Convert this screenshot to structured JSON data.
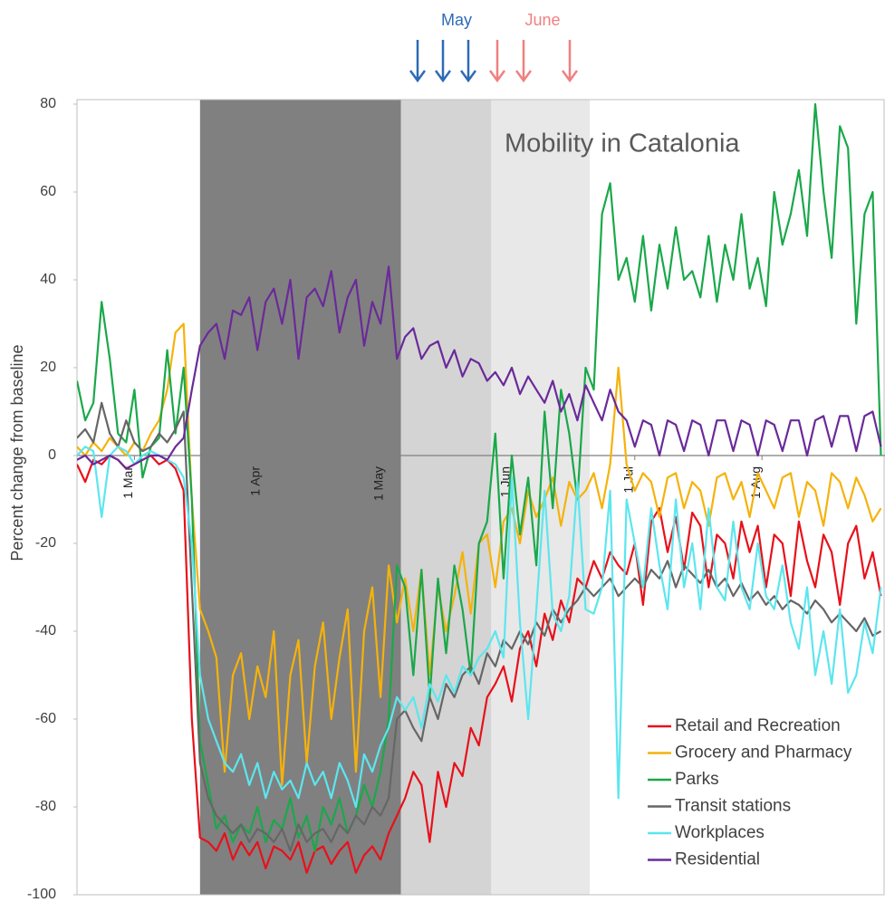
{
  "chart_data": {
    "type": "line",
    "title": "Mobility in Catalonia",
    "y_label": "Percent change from baseline",
    "annotations": [
      "May",
      "June"
    ],
    "xlim": [
      -14,
      183
    ],
    "xticks": [
      {
        "value": 0,
        "label": "1 Mar"
      },
      {
        "value": 31,
        "label": "1 Apr"
      },
      {
        "value": 61,
        "label": "1 May"
      },
      {
        "value": 92,
        "label": "1 Jun"
      },
      {
        "value": 122,
        "label": "1 Jul"
      },
      {
        "value": 153,
        "label": "1 Aug"
      }
    ],
    "ylim": [
      -100,
      80
    ],
    "yticks": [
      -100,
      -80,
      -60,
      -40,
      -20,
      0,
      20,
      40,
      60,
      80
    ],
    "legend": "lower-right",
    "shaded_ranges": [
      {
        "start": 16,
        "end": 65,
        "color": "#808080"
      },
      {
        "start": 65,
        "end": 87,
        "color": "#d4d4d4"
      },
      {
        "start": 87,
        "end": 111,
        "color": "#e8e8e8"
      }
    ],
    "x": [
      -14,
      -12,
      -10,
      -8,
      -6,
      -4,
      -2,
      0,
      2,
      4,
      6,
      8,
      10,
      12,
      14,
      16,
      18,
      20,
      22,
      24,
      26,
      28,
      30,
      32,
      34,
      36,
      38,
      40,
      42,
      44,
      46,
      48,
      50,
      52,
      54,
      56,
      58,
      60,
      62,
      64,
      66,
      68,
      70,
      72,
      74,
      76,
      78,
      80,
      82,
      84,
      86,
      88,
      90,
      92,
      94,
      96,
      98,
      100,
      102,
      104,
      106,
      108,
      110,
      112,
      114,
      116,
      118,
      120,
      122,
      124,
      126,
      128,
      130,
      132,
      134,
      136,
      138,
      140,
      142,
      144,
      146,
      148,
      150,
      152,
      154,
      156,
      158,
      160,
      162,
      164,
      166,
      168,
      170,
      172,
      174,
      176,
      178,
      180,
      182
    ],
    "series": [
      {
        "name": "Retail and Recreation",
        "color": "#e8101a",
        "values": [
          -2,
          -6,
          -1,
          -2,
          0,
          -1,
          -3,
          -2,
          -1,
          0,
          -2,
          -1,
          -3,
          -8,
          -60,
          -87,
          -88,
          -90,
          -86,
          -92,
          -88,
          -91,
          -88,
          -94,
          -89,
          -90,
          -92,
          -88,
          -95,
          -90,
          -89,
          -93,
          -90,
          -88,
          -95,
          -91,
          -89,
          -92,
          -86,
          -82,
          -78,
          -72,
          -75,
          -88,
          -72,
          -80,
          -70,
          -73,
          -62,
          -66,
          -55,
          -52,
          -48,
          -56,
          -44,
          -40,
          -48,
          -36,
          -42,
          -33,
          -38,
          -28,
          -30,
          -24,
          -28,
          -22,
          -25,
          -27,
          -20,
          -34,
          -15,
          -12,
          -22,
          -14,
          -26,
          -13,
          -16,
          -30,
          -18,
          -20,
          -28,
          -15,
          -22,
          -16,
          -30,
          -18,
          -20,
          -32,
          -15,
          -24,
          -30,
          -18,
          -22,
          -34,
          -20,
          -16,
          -28,
          -22,
          -32
        ]
      },
      {
        "name": "Grocery and Pharmacy",
        "color": "#f5b20b",
        "values": [
          2,
          0,
          3,
          1,
          4,
          2,
          0,
          3,
          1,
          5,
          8,
          15,
          28,
          30,
          -10,
          -35,
          -40,
          -46,
          -72,
          -50,
          -45,
          -60,
          -48,
          -55,
          -40,
          -75,
          -50,
          -42,
          -70,
          -48,
          -38,
          -60,
          -46,
          -35,
          -72,
          -40,
          -30,
          -55,
          -25,
          -38,
          -28,
          -40,
          -26,
          -50,
          -30,
          -40,
          -32,
          -22,
          -36,
          -20,
          -18,
          -30,
          -15,
          -12,
          -20,
          -8,
          -14,
          -10,
          -5,
          -16,
          -6,
          -10,
          -8,
          -4,
          -12,
          -2,
          20,
          -2,
          -8,
          -4,
          -6,
          -14,
          -5,
          -4,
          -12,
          -6,
          -8,
          -16,
          -5,
          -4,
          -10,
          -6,
          -14,
          -4,
          -8,
          -12,
          -5,
          -4,
          -14,
          -6,
          -8,
          -16,
          -4,
          -6,
          -12,
          -5,
          -9,
          -15,
          -12
        ]
      },
      {
        "name": "Parks",
        "color": "#1aa84a",
        "values": [
          17,
          8,
          12,
          35,
          22,
          5,
          3,
          15,
          -5,
          2,
          4,
          24,
          5,
          20,
          -10,
          -65,
          -75,
          -85,
          -82,
          -88,
          -84,
          -86,
          -80,
          -88,
          -83,
          -85,
          -78,
          -87,
          -82,
          -90,
          -80,
          -84,
          -78,
          -86,
          -82,
          -75,
          -80,
          -72,
          -60,
          -25,
          -30,
          -50,
          -26,
          -55,
          -28,
          -45,
          -25,
          -35,
          -50,
          -20,
          -15,
          5,
          -28,
          0,
          -18,
          -5,
          -25,
          10,
          -12,
          15,
          5,
          -10,
          20,
          15,
          55,
          62,
          40,
          45,
          35,
          50,
          33,
          48,
          38,
          52,
          40,
          42,
          36,
          50,
          35,
          48,
          40,
          55,
          38,
          45,
          34,
          60,
          48,
          55,
          65,
          50,
          80,
          60,
          45,
          75,
          70,
          30,
          55,
          60,
          0
        ]
      },
      {
        "name": "Transit stations",
        "color": "#666666",
        "values": [
          4,
          6,
          3,
          12,
          5,
          2,
          8,
          3,
          1,
          2,
          5,
          3,
          6,
          10,
          -30,
          -70,
          -78,
          -82,
          -84,
          -86,
          -84,
          -88,
          -85,
          -86,
          -88,
          -85,
          -90,
          -84,
          -88,
          -86,
          -85,
          -88,
          -84,
          -86,
          -82,
          -84,
          -80,
          -82,
          -78,
          -60,
          -58,
          -62,
          -65,
          -55,
          -60,
          -52,
          -55,
          -50,
          -48,
          -52,
          -45,
          -48,
          -42,
          -44,
          -40,
          -43,
          -38,
          -41,
          -35,
          -38,
          -35,
          -33,
          -30,
          -32,
          -30,
          -28,
          -32,
          -30,
          -28,
          -30,
          -26,
          -28,
          -24,
          -30,
          -25,
          -27,
          -29,
          -26,
          -30,
          -28,
          -32,
          -29,
          -33,
          -31,
          -34,
          -32,
          -35,
          -33,
          -34,
          -36,
          -33,
          -35,
          -38,
          -36,
          -38,
          -40,
          -37,
          -41,
          -40
        ]
      },
      {
        "name": "Workplaces",
        "color": "#5ce6ee",
        "values": [
          0,
          2,
          1,
          -14,
          0,
          2,
          1,
          -2,
          0,
          1,
          0,
          -1,
          -2,
          -5,
          -20,
          -50,
          -60,
          -65,
          -70,
          -72,
          -68,
          -75,
          -70,
          -78,
          -72,
          -76,
          -74,
          -78,
          -70,
          -75,
          -72,
          -78,
          -70,
          -74,
          -80,
          -68,
          -72,
          -66,
          -62,
          -55,
          -58,
          -55,
          -62,
          -52,
          -56,
          -50,
          -54,
          -48,
          -50,
          -46,
          -44,
          -40,
          -46,
          -5,
          -38,
          -60,
          -35,
          -8,
          -36,
          -40,
          -32,
          -6,
          -35,
          -36,
          -30,
          -8,
          -78,
          -10,
          -20,
          -30,
          -12,
          -25,
          -35,
          -10,
          -30,
          -20,
          -35,
          -12,
          -30,
          -33,
          -15,
          -30,
          -35,
          -20,
          -32,
          -35,
          -25,
          -38,
          -44,
          -30,
          -50,
          -40,
          -52,
          -35,
          -54,
          -50,
          -38,
          -45,
          -30
        ]
      },
      {
        "name": "Residential",
        "color": "#6a2a9a",
        "values": [
          -1,
          0,
          -2,
          -1,
          0,
          -1,
          -3,
          -2,
          -1,
          0,
          0,
          -1,
          2,
          4,
          15,
          25,
          28,
          30,
          22,
          33,
          32,
          36,
          24,
          35,
          38,
          30,
          40,
          22,
          36,
          38,
          34,
          42,
          28,
          36,
          40,
          25,
          35,
          30,
          43,
          22,
          27,
          29,
          22,
          25,
          26,
          20,
          24,
          18,
          22,
          21,
          17,
          19,
          16,
          20,
          14,
          18,
          15,
          12,
          17,
          10,
          14,
          8,
          16,
          12,
          8,
          15,
          10,
          8,
          2,
          8,
          7,
          0,
          8,
          7,
          1,
          8,
          7,
          0,
          8,
          8,
          1,
          8,
          7,
          0,
          8,
          7,
          1,
          8,
          8,
          0,
          8,
          9,
          2,
          9,
          9,
          1,
          9,
          10,
          2
        ]
      }
    ]
  }
}
